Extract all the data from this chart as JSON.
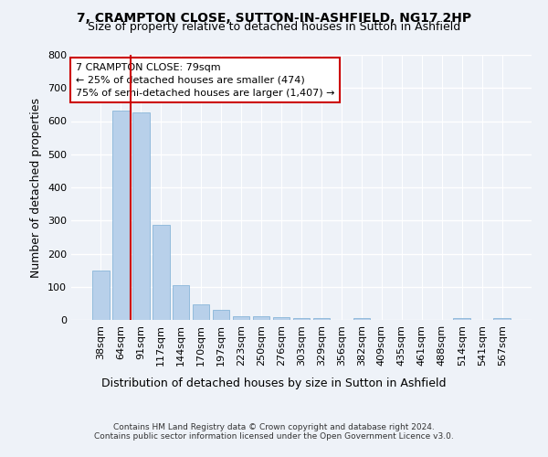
{
  "title": "7, CRAMPTON CLOSE, SUTTON-IN-ASHFIELD, NG17 2HP",
  "subtitle": "Size of property relative to detached houses in Sutton in Ashfield",
  "xlabel": "Distribution of detached houses by size in Sutton in Ashfield",
  "ylabel": "Number of detached properties",
  "bar_color": "#b8d0ea",
  "bar_edge_color": "#7aadd4",
  "categories": [
    "38sqm",
    "64sqm",
    "91sqm",
    "117sqm",
    "144sqm",
    "170sqm",
    "197sqm",
    "223sqm",
    "250sqm",
    "276sqm",
    "303sqm",
    "329sqm",
    "356sqm",
    "382sqm",
    "409sqm",
    "435sqm",
    "461sqm",
    "488sqm",
    "514sqm",
    "541sqm",
    "567sqm"
  ],
  "values": [
    148,
    632,
    627,
    287,
    104,
    47,
    30,
    11,
    11,
    7,
    6,
    6,
    0,
    6,
    0,
    0,
    0,
    0,
    6,
    0,
    6
  ],
  "vline_x": 1.5,
  "vline_color": "#cc0000",
  "annotation_line1": "7 CRAMPTON CLOSE: 79sqm",
  "annotation_line2": "← 25% of detached houses are smaller (474)",
  "annotation_line3": "75% of semi-detached houses are larger (1,407) →",
  "annotation_box_color": "#ffffff",
  "annotation_box_edge": "#cc0000",
  "footer1": "Contains HM Land Registry data © Crown copyright and database right 2024.",
  "footer2": "Contains public sector information licensed under the Open Government Licence v3.0.",
  "ylim": [
    0,
    800
  ],
  "yticks": [
    0,
    100,
    200,
    300,
    400,
    500,
    600,
    700,
    800
  ],
  "background_color": "#eef2f8",
  "grid_color": "#ffffff",
  "title_fontsize": 10,
  "subtitle_fontsize": 9,
  "xlabel_fontsize": 9,
  "ylabel_fontsize": 9,
  "tick_fontsize": 8,
  "annotation_fontsize": 8,
  "footer_fontsize": 6.5
}
